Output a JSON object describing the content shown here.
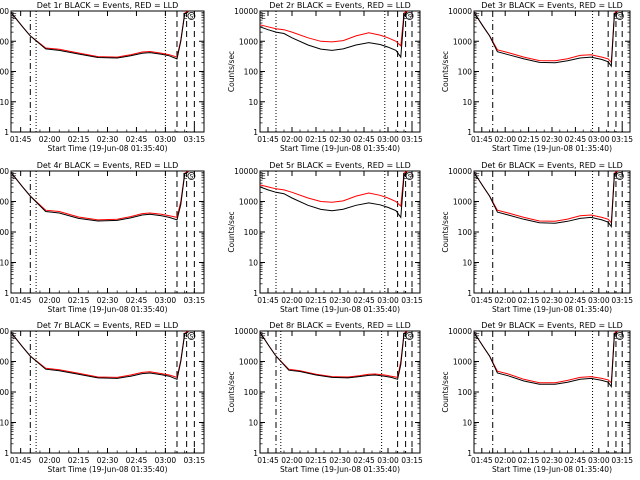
{
  "common": {
    "ylabel": "Counts/sec",
    "xlabel": "Start Time (19-Jun-08 01:35:40)",
    "x_ticks": [
      "01:45",
      "02:00",
      "02:15",
      "02:30",
      "02:45",
      "03:00",
      "03:15"
    ],
    "x_range_min": [
      0,
      100
    ],
    "y_ticks": [
      "1",
      "10",
      "100",
      "1000",
      "10000"
    ],
    "ylim": [
      1,
      10000
    ],
    "y_scale": "log",
    "series_colors": {
      "events": "#000000",
      "lld": "#ff0000"
    },
    "markers": [
      "E",
      "S"
    ]
  },
  "chart_data": [
    {
      "type": "line",
      "title": "Det 1r BLACK = Events, RED = LLD",
      "x": [
        0,
        6,
        10,
        18,
        25,
        35,
        45,
        55,
        62,
        68,
        72,
        78,
        82,
        86,
        88,
        90,
        92
      ],
      "series": [
        {
          "name": "Events",
          "values": [
            9000,
            3000,
            1500,
            560,
            500,
            380,
            290,
            280,
            330,
            400,
            420,
            370,
            330,
            260,
            1000,
            8000,
            9500
          ]
        },
        {
          "name": "LLD",
          "values": [
            9000,
            3000,
            1500,
            600,
            540,
            410,
            310,
            300,
            360,
            440,
            460,
            400,
            360,
            300,
            1100,
            8500,
            10000
          ]
        }
      ],
      "vlines": [
        {
          "x": 10,
          "style": "dashdot"
        },
        {
          "x": 13,
          "style": "dotted"
        },
        {
          "x": 80,
          "style": "dotted"
        },
        {
          "x": 86,
          "style": "dashed"
        },
        {
          "x": 91,
          "style": "dashed"
        },
        {
          "x": 95,
          "style": "dashed"
        }
      ]
    },
    {
      "type": "line",
      "title": "Det 2r BLACK = Events, RED = LLD",
      "x": [
        0,
        5,
        10,
        15,
        20,
        30,
        38,
        45,
        52,
        60,
        68,
        75,
        80,
        85,
        88,
        90,
        92
      ],
      "series": [
        {
          "name": "Events",
          "values": [
            3000,
            2400,
            2000,
            1800,
            1300,
            750,
            550,
            500,
            560,
            750,
            900,
            780,
            640,
            500,
            300,
            7000,
            9500
          ]
        },
        {
          "name": "LLD",
          "values": [
            3500,
            3000,
            2600,
            2400,
            2000,
            1300,
            1000,
            950,
            1050,
            1500,
            1900,
            1600,
            1300,
            1000,
            700,
            8500,
            10000
          ]
        }
      ],
      "vlines": [
        {
          "x": 10,
          "style": "dotted"
        },
        {
          "x": 78,
          "style": "dotted"
        },
        {
          "x": 86,
          "style": "dashed"
        },
        {
          "x": 91,
          "style": "dashed"
        },
        {
          "x": 95,
          "style": "dashed"
        }
      ]
    },
    {
      "type": "line",
      "title": "Det 3r BLACK = Events, RED = LLD",
      "x": [
        0,
        6,
        10,
        15,
        22,
        32,
        42,
        52,
        60,
        68,
        75,
        82,
        86,
        88,
        90,
        92
      ],
      "series": [
        {
          "name": "Events",
          "values": [
            9000,
            3000,
            1500,
            450,
            360,
            260,
            200,
            195,
            225,
            280,
            300,
            250,
            210,
            150,
            7500,
            9500
          ]
        },
        {
          "name": "LLD",
          "values": [
            9000,
            3000,
            1500,
            520,
            420,
            300,
            230,
            225,
            265,
            340,
            360,
            300,
            260,
            200,
            8500,
            10000
          ]
        }
      ],
      "vlines": [
        {
          "x": 12,
          "style": "dashdot"
        },
        {
          "x": 76,
          "style": "dotted"
        },
        {
          "x": 86,
          "style": "dashed"
        },
        {
          "x": 91,
          "style": "dashed"
        },
        {
          "x": 95,
          "style": "dashed"
        }
      ]
    },
    {
      "type": "line",
      "title": "Det 4r BLACK = Events, RED = LLD",
      "x": [
        0,
        6,
        10,
        18,
        25,
        35,
        45,
        55,
        62,
        68,
        72,
        78,
        82,
        86,
        88,
        90,
        92
      ],
      "series": [
        {
          "name": "Events",
          "values": [
            9000,
            3000,
            1500,
            470,
            420,
            280,
            230,
            240,
            290,
            360,
            380,
            340,
            300,
            250,
            800,
            8000,
            9500
          ]
        },
        {
          "name": "LLD",
          "values": [
            9000,
            3000,
            1500,
            520,
            470,
            310,
            250,
            260,
            320,
            400,
            420,
            380,
            340,
            300,
            1000,
            8500,
            10000
          ]
        }
      ],
      "vlines": [
        {
          "x": 10,
          "style": "dashdot"
        },
        {
          "x": 13,
          "style": "dotted"
        },
        {
          "x": 80,
          "style": "dotted"
        },
        {
          "x": 86,
          "style": "dashed"
        },
        {
          "x": 91,
          "style": "dashed"
        },
        {
          "x": 95,
          "style": "dashed"
        }
      ]
    },
    {
      "type": "line",
      "title": "Det 5r BLACK = Events, RED = LLD",
      "x": [
        0,
        5,
        10,
        15,
        20,
        30,
        38,
        45,
        52,
        60,
        68,
        75,
        80,
        85,
        88,
        90,
        92
      ],
      "series": [
        {
          "name": "Events",
          "values": [
            3000,
            2400,
            2000,
            1800,
            1300,
            750,
            550,
            500,
            560,
            750,
            900,
            780,
            640,
            500,
            300,
            7000,
            9500
          ]
        },
        {
          "name": "LLD",
          "values": [
            3500,
            3000,
            2600,
            2400,
            2000,
            1300,
            1000,
            950,
            1050,
            1500,
            1900,
            1600,
            1300,
            1000,
            700,
            8500,
            10000
          ]
        }
      ],
      "vlines": [
        {
          "x": 10,
          "style": "dotted"
        },
        {
          "x": 78,
          "style": "dotted"
        },
        {
          "x": 86,
          "style": "dashed"
        },
        {
          "x": 91,
          "style": "dashed"
        },
        {
          "x": 95,
          "style": "dashed"
        }
      ]
    },
    {
      "type": "line",
      "title": "Det 6r BLACK = Events, RED = LLD",
      "x": [
        0,
        6,
        10,
        15,
        22,
        32,
        42,
        52,
        60,
        68,
        75,
        82,
        86,
        88,
        90,
        92
      ],
      "series": [
        {
          "name": "Events",
          "values": [
            9000,
            3000,
            1500,
            450,
            360,
            260,
            200,
            195,
            225,
            280,
            300,
            250,
            210,
            150,
            7500,
            9500
          ]
        },
        {
          "name": "LLD",
          "values": [
            9000,
            3000,
            1500,
            520,
            420,
            300,
            230,
            225,
            265,
            340,
            360,
            300,
            260,
            200,
            8500,
            10000
          ]
        }
      ],
      "vlines": [
        {
          "x": 12,
          "style": "dashdot"
        },
        {
          "x": 76,
          "style": "dotted"
        },
        {
          "x": 86,
          "style": "dashed"
        },
        {
          "x": 91,
          "style": "dashed"
        },
        {
          "x": 95,
          "style": "dashed"
        }
      ]
    },
    {
      "type": "line",
      "title": "Det 7r BLACK = Events, RED = LLD",
      "x": [
        0,
        6,
        10,
        18,
        25,
        35,
        45,
        55,
        62,
        68,
        72,
        78,
        82,
        86,
        88,
        90,
        92
      ],
      "series": [
        {
          "name": "Events",
          "values": [
            9000,
            3000,
            1500,
            560,
            500,
            380,
            290,
            280,
            330,
            400,
            420,
            370,
            330,
            260,
            1000,
            8000,
            9500
          ]
        },
        {
          "name": "LLD",
          "values": [
            9000,
            3000,
            1500,
            600,
            540,
            410,
            310,
            300,
            360,
            440,
            460,
            400,
            360,
            300,
            1100,
            8500,
            10000
          ]
        }
      ],
      "vlines": [
        {
          "x": 10,
          "style": "dashdot"
        },
        {
          "x": 13,
          "style": "dotted"
        },
        {
          "x": 80,
          "style": "dotted"
        },
        {
          "x": 86,
          "style": "dashed"
        },
        {
          "x": 91,
          "style": "dashed"
        },
        {
          "x": 95,
          "style": "dashed"
        }
      ]
    },
    {
      "type": "line",
      "title": "Det 8r BLACK = Events, RED = LLD",
      "x": [
        0,
        6,
        10,
        18,
        25,
        35,
        45,
        55,
        62,
        68,
        72,
        78,
        82,
        86,
        88,
        90,
        92
      ],
      "series": [
        {
          "name": "Events",
          "values": [
            9000,
            3000,
            1500,
            520,
            470,
            360,
            300,
            290,
            320,
            350,
            360,
            330,
            300,
            260,
            800,
            8000,
            9500
          ]
        },
        {
          "name": "LLD",
          "values": [
            9000,
            3000,
            1500,
            560,
            500,
            380,
            320,
            310,
            340,
            380,
            390,
            360,
            330,
            300,
            1000,
            8500,
            10000
          ]
        }
      ],
      "vlines": [
        {
          "x": 10,
          "style": "dashdot"
        },
        {
          "x": 13,
          "style": "dotted"
        },
        {
          "x": 76,
          "style": "dotted"
        },
        {
          "x": 86,
          "style": "dashed"
        },
        {
          "x": 91,
          "style": "dashed"
        },
        {
          "x": 95,
          "style": "dashed"
        }
      ]
    },
    {
      "type": "line",
      "title": "Det 9r BLACK = Events, RED = LLD",
      "x": [
        0,
        6,
        10,
        15,
        22,
        32,
        42,
        52,
        60,
        68,
        75,
        82,
        86,
        88,
        90,
        92
      ],
      "series": [
        {
          "name": "Events",
          "values": [
            9000,
            3000,
            1500,
            420,
            340,
            230,
            180,
            180,
            210,
            260,
            280,
            240,
            210,
            150,
            7500,
            9500
          ]
        },
        {
          "name": "LLD",
          "values": [
            9000,
            3000,
            1500,
            480,
            390,
            260,
            200,
            200,
            240,
            300,
            320,
            280,
            250,
            200,
            8500,
            10000
          ]
        }
      ],
      "vlines": [
        {
          "x": 12,
          "style": "dashdot"
        },
        {
          "x": 76,
          "style": "dotted"
        },
        {
          "x": 86,
          "style": "dashed"
        },
        {
          "x": 91,
          "style": "dashed"
        },
        {
          "x": 95,
          "style": "dashed"
        }
      ]
    }
  ]
}
